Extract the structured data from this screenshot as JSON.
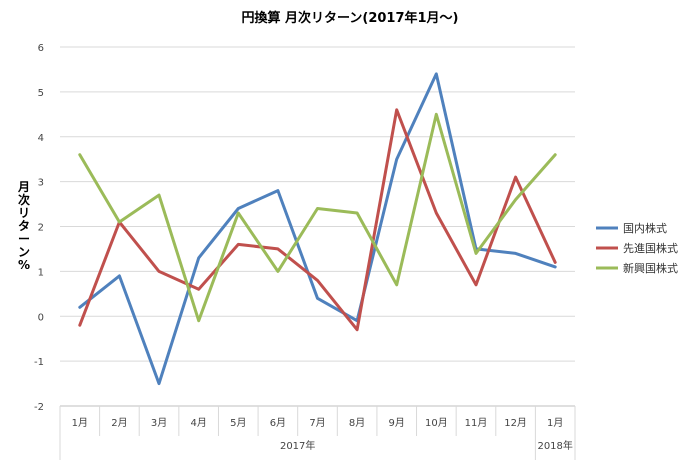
{
  "chart_data": {
    "type": "line",
    "title": "円換算 月次リターン(2017年1月～)",
    "ylabel": "月次リターン%",
    "ylim": [
      -2,
      6
    ],
    "yticks": [
      "-2",
      "-1",
      "0",
      "1",
      "2",
      "3",
      "4",
      "5",
      "6"
    ],
    "categories": [
      "1月",
      "2月",
      "3月",
      "4月",
      "5月",
      "6月",
      "7月",
      "8月",
      "9月",
      "10月",
      "11月",
      "12月",
      "1月"
    ],
    "year_groups": [
      {
        "label": "2017年",
        "count": 12
      },
      {
        "label": "2018年",
        "count": 1
      }
    ],
    "grid": true,
    "legend_position": "right",
    "series": [
      {
        "name": "国内株式",
        "color": "#4F81BD",
        "values": [
          0.2,
          0.9,
          -1.5,
          1.3,
          2.4,
          2.8,
          0.4,
          -0.1,
          3.5,
          5.4,
          1.5,
          1.4,
          1.1
        ]
      },
      {
        "name": "先進国株式",
        "color": "#C0504D",
        "values": [
          -0.2,
          2.1,
          1.0,
          0.6,
          1.6,
          1.5,
          0.8,
          -0.3,
          4.6,
          2.3,
          0.7,
          3.1,
          1.2
        ]
      },
      {
        "name": "新興国株式",
        "color": "#9BBB59",
        "values": [
          3.6,
          2.1,
          2.7,
          -0.1,
          2.3,
          1.0,
          2.4,
          2.3,
          0.7,
          4.5,
          1.4,
          2.6,
          3.6
        ]
      }
    ]
  }
}
